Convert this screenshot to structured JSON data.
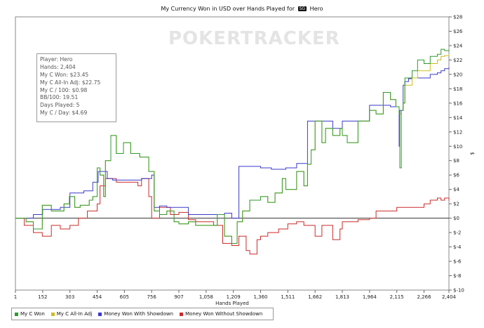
{
  "chart_data": {
    "type": "line",
    "title": "My Currency Won in USD over Hands Played for",
    "title_badge": "SG",
    "title_player": "Hero",
    "watermark": "POKERTRACKER",
    "xlabel": "Hands Played",
    "ylabel": "$",
    "xlim": [
      1,
      2404
    ],
    "ylim": [
      -10,
      28
    ],
    "x_ticks": [
      1,
      152,
      303,
      454,
      605,
      756,
      907,
      1058,
      1209,
      1360,
      1511,
      1662,
      1813,
      1964,
      2115,
      2266,
      2404
    ],
    "x_tick_labels": [
      "1",
      "152",
      "303",
      "454",
      "605",
      "756",
      "907",
      "1,058",
      "1,209",
      "1,360",
      "1,511",
      "1,662",
      "1,813",
      "1,964",
      "2,115",
      "2,266",
      "2,404"
    ],
    "y_ticks": [
      28,
      26,
      24,
      22,
      20,
      18,
      16,
      14,
      12,
      10,
      8,
      6,
      4,
      2,
      0,
      -2,
      -4,
      -6,
      -8,
      -10
    ],
    "y_tick_labels": [
      "$28",
      "$26",
      "$24",
      "$22",
      "$20",
      "$18",
      "$16",
      "$14",
      "$12",
      "$10",
      "$8",
      "$6",
      "$4",
      "$2",
      "$0",
      "$-2",
      "$-4",
      "$-6",
      "$-8",
      "$-10"
    ],
    "grid": false,
    "legend_position": "bottom-left",
    "stats": [
      "Player: Hero",
      "Hands: 2,404",
      "My C Won: $23.45",
      "My C All-In Adj: $22.75",
      "My C / 100: $0.98",
      "BB/100: 19.51",
      "Days Played: 5",
      "My C / Day: $4.69"
    ],
    "series": [
      {
        "name": "My C Won",
        "color": "#2e9a2e",
        "x": [
          1,
          60,
          100,
          150,
          200,
          270,
          300,
          330,
          360,
          410,
          430,
          454,
          470,
          490,
          500,
          530,
          560,
          600,
          640,
          690,
          740,
          770,
          800,
          840,
          880,
          907,
          960,
          1000,
          1058,
          1120,
          1160,
          1200,
          1230,
          1260,
          1300,
          1360,
          1400,
          1440,
          1480,
          1500,
          1560,
          1600,
          1620,
          1640,
          1662,
          1700,
          1720,
          1760,
          1800,
          1813,
          1840,
          1900,
          1964,
          2000,
          2040,
          2080,
          2110,
          2128,
          2132,
          2140,
          2150,
          2160,
          2200,
          2230,
          2266,
          2300,
          2340,
          2360,
          2380,
          2404
        ],
        "y": [
          0,
          -0.5,
          -1.5,
          1.8,
          1,
          2,
          3,
          1.5,
          1.8,
          2.5,
          3,
          7,
          6,
          3,
          8,
          11.5,
          9,
          10.5,
          9,
          8.5,
          6.5,
          1,
          0.5,
          1,
          -0.5,
          -0.8,
          -0.5,
          -1,
          -1,
          0.5,
          -2.5,
          -3.5,
          -0.5,
          1,
          2.5,
          3,
          2.2,
          3.5,
          5.5,
          4,
          6.5,
          4.5,
          7.5,
          9.5,
          13.5,
          10.5,
          12.5,
          11.5,
          12.5,
          11.5,
          10.5,
          13.5,
          15,
          14.5,
          17.5,
          16.5,
          15.5,
          14.5,
          7,
          15,
          16,
          19.5,
          20.5,
          22,
          21.5,
          22.5,
          22.8,
          23.5,
          23.3,
          23.45
        ]
      },
      {
        "name": "My C All-In Adj",
        "color": "#cbbd20",
        "x": [
          1,
          60,
          100,
          150,
          200,
          270,
          300,
          330,
          360,
          410,
          430,
          454,
          470,
          490,
          500,
          530,
          560,
          600,
          640,
          690,
          740,
          770,
          800,
          840,
          880,
          907,
          960,
          1000,
          1058,
          1120,
          1160,
          1200,
          1230,
          1260,
          1300,
          1360,
          1400,
          1440,
          1480,
          1500,
          1560,
          1600,
          1620,
          1640,
          1662,
          1700,
          1720,
          1760,
          1800,
          1813,
          1840,
          1900,
          1964,
          2000,
          2040,
          2080,
          2110,
          2128,
          2132,
          2140,
          2150,
          2160,
          2200,
          2230,
          2266,
          2300,
          2340,
          2360,
          2380,
          2404
        ],
        "y": [
          0,
          -0.5,
          -1.5,
          1.8,
          1,
          2,
          3,
          1.5,
          1.8,
          2.5,
          3,
          7,
          6,
          3,
          8,
          11.5,
          9,
          10.5,
          9,
          8.5,
          6.5,
          1,
          0.5,
          1,
          -0.5,
          -0.8,
          -0.5,
          -1,
          -1,
          0.5,
          -2.5,
          -3.5,
          -0.5,
          1,
          2.5,
          3,
          2.2,
          3.5,
          5.5,
          4,
          6.5,
          4.5,
          7.5,
          9.5,
          13.5,
          10.5,
          12.5,
          11.5,
          12.5,
          11.5,
          10.5,
          13.5,
          15,
          14.5,
          17.5,
          16.5,
          15.5,
          14.5,
          14.5,
          15,
          16,
          18.5,
          19.5,
          20.5,
          20.5,
          21.5,
          22,
          22.5,
          22.6,
          22.75
        ]
      },
      {
        "name": "Money Won With Showdown",
        "color": "#3a3acc",
        "x": [
          1,
          100,
          152,
          250,
          303,
          380,
          430,
          460,
          470,
          510,
          540,
          620,
          700,
          756,
          770,
          800,
          840,
          907,
          960,
          1058,
          1100,
          1160,
          1200,
          1230,
          1240,
          1300,
          1360,
          1420,
          1500,
          1560,
          1620,
          1662,
          1700,
          1760,
          1813,
          1840,
          1900,
          1964,
          2000,
          2040,
          2080,
          2115,
          2128,
          2132,
          2150,
          2160,
          2180,
          2200,
          2266,
          2300,
          2340,
          2360,
          2380,
          2404
        ],
        "y": [
          0,
          0.5,
          1.2,
          1.5,
          3.5,
          3.8,
          5,
          6.5,
          6.5,
          5.5,
          5.3,
          5.3,
          5.5,
          6,
          1.5,
          1.7,
          1.5,
          1.5,
          0.5,
          0.5,
          0.5,
          0.7,
          0,
          0,
          7.2,
          7.2,
          7,
          6.8,
          7,
          7.6,
          13.5,
          13.5,
          13.5,
          12.5,
          13.5,
          13.5,
          13.5,
          15.7,
          15.7,
          15.7,
          15.5,
          15.5,
          10,
          15,
          18.5,
          19,
          19.4,
          19.5,
          19.5,
          20,
          20.2,
          20.5,
          20.8,
          21
        ]
      },
      {
        "name": "Money Won Without Showdown",
        "color": "#cc2a2a",
        "x": [
          1,
          50,
          100,
          150,
          200,
          250,
          303,
          350,
          400,
          454,
          470,
          500,
          560,
          620,
          680,
          700,
          740,
          756,
          800,
          860,
          907,
          960,
          1000,
          1058,
          1100,
          1150,
          1200,
          1240,
          1280,
          1300,
          1340,
          1360,
          1400,
          1460,
          1511,
          1560,
          1600,
          1662,
          1700,
          1760,
          1800,
          1813,
          1864,
          1900,
          1964,
          2000,
          2060,
          2115,
          2150,
          2200,
          2266,
          2300,
          2340,
          2360,
          2380,
          2404
        ],
        "y": [
          0,
          -1,
          -2,
          -2.5,
          -1,
          -1.5,
          -1,
          0,
          1,
          2,
          4.5,
          5.5,
          5,
          5,
          4.5,
          5.5,
          3,
          0,
          1.5,
          0.5,
          0.8,
          -0.2,
          -0.5,
          -0.5,
          -1,
          -3.5,
          -3.8,
          -2.5,
          -4.5,
          -5,
          -3,
          -2.5,
          -2,
          -1.5,
          -0.8,
          -0.5,
          -1,
          -2.5,
          -1,
          -3,
          -1.5,
          -0.5,
          -0.5,
          -0.2,
          0,
          1,
          1,
          1.5,
          1.5,
          1.5,
          2,
          2.5,
          2.8,
          2.5,
          2.8,
          2.45
        ]
      }
    ]
  }
}
